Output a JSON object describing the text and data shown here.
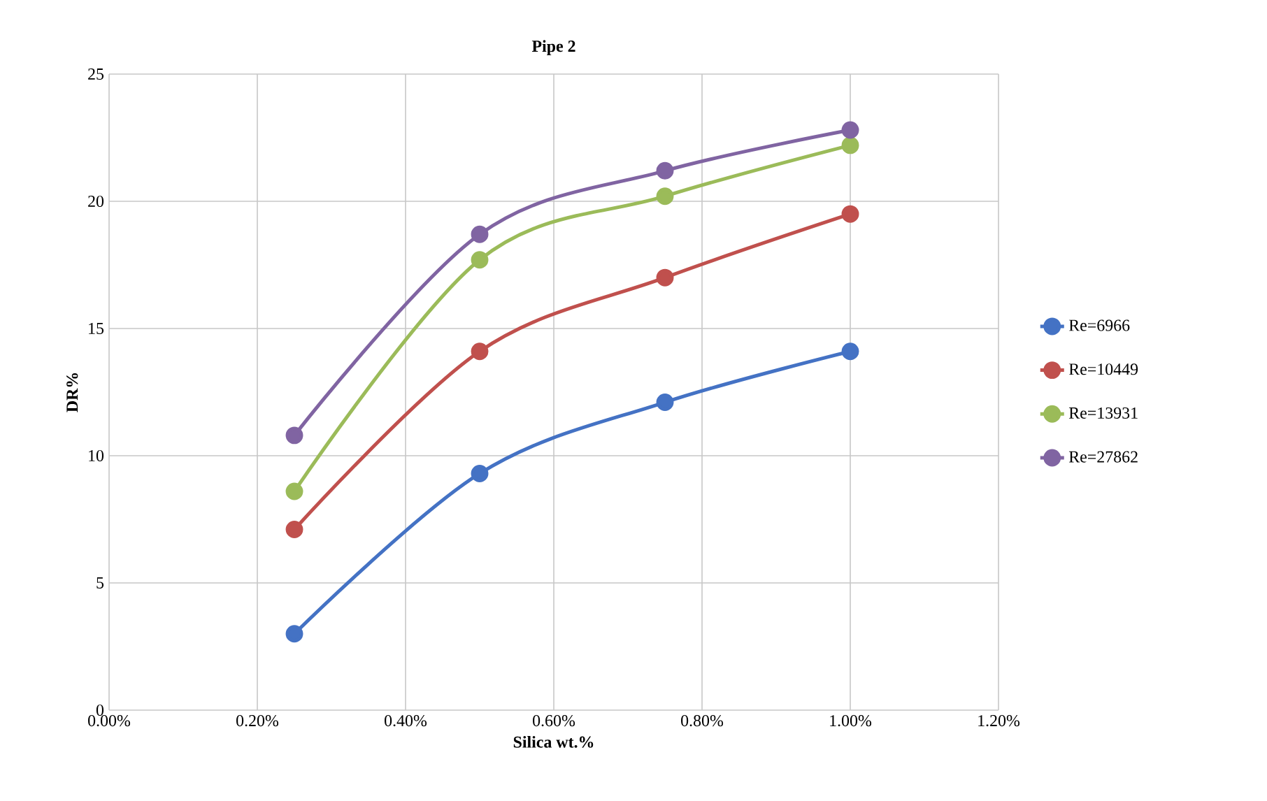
{
  "chart_data": {
    "type": "line",
    "title": "Pipe 2",
    "xlabel": "Silica wt.%",
    "ylabel": "DR%",
    "x": [
      0.25,
      0.5,
      0.75,
      1.0
    ],
    "series": [
      {
        "name": "Re=6966",
        "color": "#4472c4",
        "values": [
          3.0,
          9.3,
          12.1,
          14.1
        ]
      },
      {
        "name": "Re=10449",
        "color": "#c0504d",
        "values": [
          7.1,
          14.1,
          17.0,
          19.5
        ]
      },
      {
        "name": "Re=13931",
        "color": "#9bbb59",
        "values": [
          8.6,
          17.7,
          20.2,
          22.2
        ]
      },
      {
        "name": "Re=27862",
        "color": "#8064a2",
        "values": [
          10.8,
          18.7,
          21.2,
          22.8
        ]
      }
    ],
    "xlim": [
      0,
      1.2
    ],
    "xticks": [
      {
        "value": 0,
        "label": "0.00%"
      },
      {
        "value": 0.2,
        "label": "0.20%"
      },
      {
        "value": 0.4,
        "label": "0.40%"
      },
      {
        "value": 0.6,
        "label": "0.60%"
      },
      {
        "value": 0.8,
        "label": "0.80%"
      },
      {
        "value": 1.0,
        "label": "1.00%"
      },
      {
        "value": 1.2,
        "label": "1.20%"
      }
    ],
    "ylim": [
      0,
      25
    ],
    "yticks": [
      0,
      5,
      10,
      15,
      20,
      25
    ],
    "grid": true,
    "legend": "right",
    "marker": "circle",
    "line_style": "solid"
  }
}
